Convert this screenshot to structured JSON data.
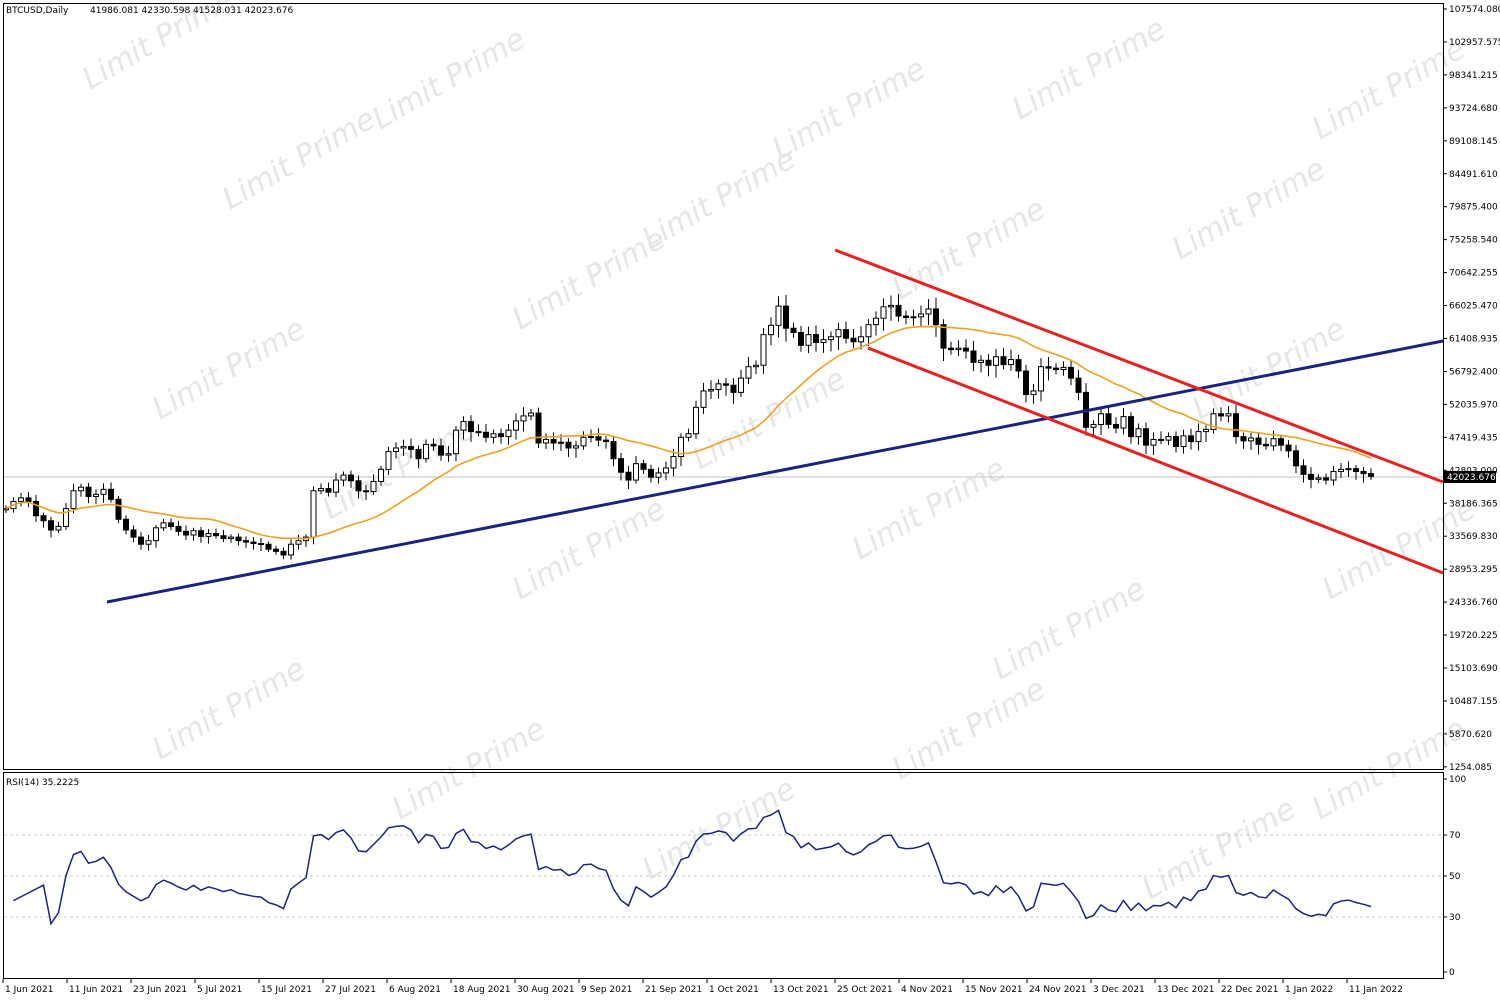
{
  "header": {
    "symbol": "BTCUSD,Daily",
    "ohlc": "41986.081 42330.598 41528.031 42023.676"
  },
  "rsi_panel": {
    "label": "RSI(14) 35.2225"
  },
  "current_price": "42023.676",
  "price_axis_labels": [
    "107574.080",
    "102957.575",
    "98341.215",
    "93724.680",
    "89108.145",
    "84491.610",
    "79875.400",
    "75258.540",
    "70642.255",
    "66025.470",
    "61408.935",
    "56792.400",
    "52035.970",
    "47419.435",
    "42803.000",
    "38186.365",
    "33569.830",
    "28953.295",
    "24336.760",
    "19720.225",
    "15103.690",
    "10487.155",
    "5870.620",
    "1254.085"
  ],
  "rsi_axis_labels": [
    "100",
    "70",
    "50",
    "30",
    "0"
  ],
  "time_axis_labels": [
    "1 Jun 2021",
    "11 Jun 2021",
    "23 Jun 2021",
    "5 Jul 2021",
    "15 Jul 2021",
    "27 Jul 2021",
    "6 Aug 2021",
    "18 Aug 2021",
    "30 Aug 2021",
    "9 Sep 2021",
    "21 Sep 2021",
    "1 Oct 2021",
    "13 Oct 2021",
    "25 Oct 2021",
    "4 Nov 2021",
    "15 Nov 2021",
    "24 Nov 2021",
    "3 Dec 2021",
    "13 Dec 2021",
    "22 Dec 2021",
    "1 Jan 2022",
    "11 Jan 2022"
  ],
  "watermark": "Limit Prime",
  "colors": {
    "candle": "#000000",
    "ma": "#f0a020",
    "trend_up": "#1a237e",
    "channel": "#e82020",
    "rsi": "#1a237e",
    "grid": "#c8c8c8",
    "watermark": "#e6e6e6"
  },
  "chart_data": {
    "type": "candlestick",
    "instrument": "BTCUSD",
    "timeframe": "Daily",
    "y_range": [
      1254.085,
      107574.08
    ],
    "closes": [
      37500,
      38500,
      39000,
      38500,
      36500,
      35800,
      34500,
      35000,
      37500,
      40000,
      40500,
      39200,
      39500,
      40200,
      38800,
      36000,
      34500,
      33500,
      32500,
      33000,
      34800,
      35500,
      35000,
      34300,
      33800,
      34400,
      33600,
      34000,
      33700,
      33300,
      33500,
      33000,
      32800,
      32600,
      32500,
      31800,
      31500,
      31000,
      32500,
      33000,
      33500,
      40000,
      40300,
      39800,
      41500,
      42200,
      41400,
      40000,
      39900,
      41300,
      43000,
      45500,
      46000,
      46200,
      45800,
      44500,
      46500,
      46300,
      45000,
      45200,
      48500,
      49700,
      48300,
      48200,
      47500,
      48000,
      47600,
      48500,
      49800,
      50500,
      50900,
      46700,
      47200,
      46700,
      46800,
      46000,
      46300,
      47500,
      47600,
      47100,
      46900,
      44500,
      42600,
      41500,
      43800,
      43000,
      41900,
      42500,
      43200,
      44800,
      47500,
      48000,
      51700,
      54000,
      54200,
      55000,
      54800,
      53800,
      55800,
      57400,
      57600,
      61900,
      63200,
      65900,
      62800,
      62200,
      60400,
      61900,
      60800,
      61200,
      61600,
      62600,
      61400,
      60900,
      61600,
      63300,
      64200,
      65800,
      66000,
      64500,
      64300,
      64400,
      64800,
      65500,
      63300,
      60000,
      59800,
      60000,
      59600,
      58000,
      58300,
      57600,
      58800,
      57700,
      58400,
      56800,
      53500,
      54000,
      57400,
      57200,
      57000,
      57300,
      55800,
      53800,
      48900,
      49300,
      50800,
      49300,
      48800,
      50400,
      47600,
      48700,
      46400,
      47200,
      47100,
      47600,
      46200,
      47700,
      46900,
      48300,
      48600,
      50800,
      50500,
      50800,
      47600,
      47000,
      47400,
      46500,
      46300,
      47300,
      46400,
      45600,
      43500,
      42300,
      41600,
      41800,
      41500,
      42700,
      43000,
      43100,
      42700,
      42400,
      42023
    ]
  }
}
